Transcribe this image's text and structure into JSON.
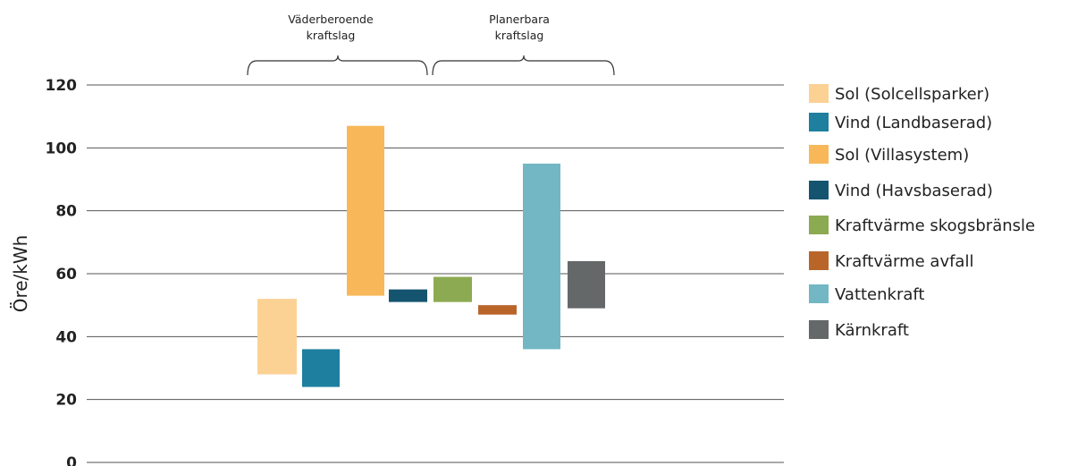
{
  "chart_data": {
    "type": "bar",
    "subtype": "floating-range",
    "ylabel": "Öre/kWh",
    "xlabel": "",
    "ylim": [
      0,
      120
    ],
    "yticks": [
      "0",
      "20",
      "40",
      "60",
      "80",
      "100",
      "120"
    ],
    "grid": true,
    "legend_placement": "right",
    "groups": [
      {
        "label_lines": [
          "Väderberoende",
          "kraftslag"
        ],
        "series_range": [
          0,
          3
        ]
      },
      {
        "label_lines": [
          "Planerbara",
          "kraftslag"
        ],
        "series_range": [
          4,
          7
        ]
      }
    ],
    "series": [
      {
        "name": "Sol  (Solcellsparker)",
        "low": 28,
        "high": 52,
        "color": "#FBD194"
      },
      {
        "name": "Vind (Landbaserad)",
        "low": 24,
        "high": 36,
        "color": "#1E7F9E"
      },
      {
        "name": "Sol (Villasystem)",
        "low": 53,
        "high": 107,
        "color": "#F8B85A"
      },
      {
        "name": "Vind (Havsbaserad)",
        "low": 51,
        "high": 55,
        "color": "#15546F"
      },
      {
        "name": "Kraftvärme skogsbränsle",
        "low": 51,
        "high": 59,
        "color": "#8CAA52"
      },
      {
        "name": "Kraftvärme avfall",
        "low": 47,
        "high": 50,
        "color": "#B9652A"
      },
      {
        "name": "Vattenkraft",
        "low": 36,
        "high": 95,
        "color": "#72B7C3"
      },
      {
        "name": "Kärnkraft",
        "low": 49,
        "high": 64,
        "color": "#656868"
      }
    ]
  }
}
